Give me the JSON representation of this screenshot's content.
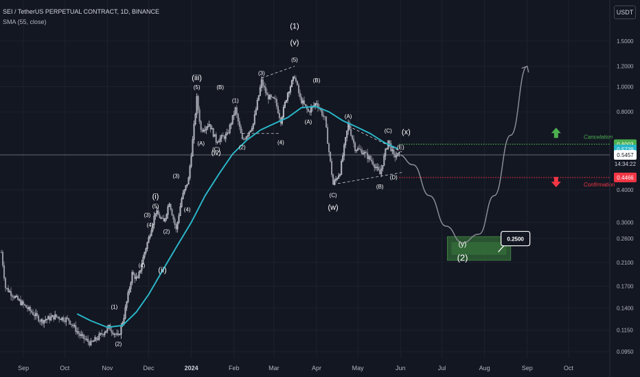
{
  "header": {
    "title": "SEI / TetherUS PERPETUAL CONTRACT, 1D, BINANCE",
    "indicator": "SMA (55, close)",
    "currency": "USDT"
  },
  "colors": {
    "background": "#131722",
    "bull": "#d1d4dc",
    "sma": "#29b6c8",
    "projection": "#8a8d96",
    "cancel_green": "#4caf50",
    "confirm_red": "#f23645",
    "current_line": "#b2b5be",
    "target_zone": "#2e5e32"
  },
  "chart_data": {
    "type": "candlestick",
    "title": "SEI / TetherUS PERPETUAL CONTRACT, 1D, BINANCE",
    "scale": "log",
    "ylim": [
      0.09,
      1.8
    ],
    "xlim": [
      "2023-08-15",
      "2024-10-31"
    ],
    "x_ticks": [
      {
        "date": "2023-09-01",
        "label": "Sep"
      },
      {
        "date": "2023-10-01",
        "label": "Oct"
      },
      {
        "date": "2023-11-01",
        "label": "Nov"
      },
      {
        "date": "2023-12-01",
        "label": "Dec"
      },
      {
        "date": "2024-01-01",
        "label": "2024"
      },
      {
        "date": "2024-02-01",
        "label": "Feb"
      },
      {
        "date": "2024-03-01",
        "label": "Mar"
      },
      {
        "date": "2024-04-01",
        "label": "Apr"
      },
      {
        "date": "2024-05-01",
        "label": "May"
      },
      {
        "date": "2024-06-01",
        "label": "Jun"
      },
      {
        "date": "2024-07-01",
        "label": "Jul"
      },
      {
        "date": "2024-08-01",
        "label": "Aug"
      },
      {
        "date": "2024-09-01",
        "label": "Sep"
      },
      {
        "date": "2024-10-01",
        "label": "Oct"
      }
    ],
    "y_ticks": [
      {
        "value": 1.5,
        "label": "1.5000"
      },
      {
        "value": 1.2,
        "label": "1.2000"
      },
      {
        "value": 1.0,
        "label": "1.0000"
      },
      {
        "value": 0.8,
        "label": "0.8000"
      },
      {
        "value": 0.4,
        "label": "0.4000"
      },
      {
        "value": 0.3,
        "label": "0.3000"
      },
      {
        "value": 0.26,
        "label": "0.2600"
      },
      {
        "value": 0.21,
        "label": "0.2100"
      },
      {
        "value": 0.17,
        "label": "0.1700"
      },
      {
        "value": 0.14,
        "label": "0.1400"
      },
      {
        "value": 0.115,
        "label": "0.1150"
      },
      {
        "value": 0.095,
        "label": "0.0950"
      }
    ],
    "price_path": [
      [
        "2023-08-16",
        0.23
      ],
      [
        "2023-08-19",
        0.168
      ],
      [
        "2023-08-27",
        0.152
      ],
      [
        "2023-09-07",
        0.135
      ],
      [
        "2023-09-14",
        0.125
      ],
      [
        "2023-09-24",
        0.13
      ],
      [
        "2023-10-04",
        0.126
      ],
      [
        "2023-10-12",
        0.11
      ],
      [
        "2023-10-20",
        0.102
      ],
      [
        "2023-10-27",
        0.11
      ],
      [
        "2023-11-02",
        0.118
      ],
      [
        "2023-11-09",
        0.108
      ],
      [
        "2023-11-13",
        0.13
      ],
      [
        "2023-11-19",
        0.19
      ],
      [
        "2023-11-23",
        0.18
      ],
      [
        "2023-11-28",
        0.23
      ],
      [
        "2023-12-01",
        0.26
      ],
      [
        "2023-12-06",
        0.33
      ],
      [
        "2023-12-12",
        0.3
      ],
      [
        "2023-12-16",
        0.36
      ],
      [
        "2023-12-21",
        0.28
      ],
      [
        "2023-12-25",
        0.37
      ],
      [
        "2023-12-30",
        0.44
      ],
      [
        "2024-01-02",
        0.62
      ],
      [
        "2024-01-05",
        0.9
      ],
      [
        "2024-01-08",
        0.68
      ],
      [
        "2024-01-14",
        0.72
      ],
      [
        "2024-01-19",
        0.62
      ],
      [
        "2024-01-27",
        0.65
      ],
      [
        "2024-02-02",
        0.82
      ],
      [
        "2024-02-07",
        0.62
      ],
      [
        "2024-02-11",
        0.66
      ],
      [
        "2024-02-15",
        0.72
      ],
      [
        "2024-02-21",
        1.05
      ],
      [
        "2024-02-25",
        0.92
      ],
      [
        "2024-03-02",
        0.88
      ],
      [
        "2024-03-06",
        0.74
      ],
      [
        "2024-03-11",
        0.95
      ],
      [
        "2024-03-16",
        1.1
      ],
      [
        "2024-03-20",
        0.9
      ],
      [
        "2024-03-26",
        0.8
      ],
      [
        "2024-04-01",
        0.87
      ],
      [
        "2024-04-07",
        0.75
      ],
      [
        "2024-04-13",
        0.42
      ],
      [
        "2024-04-18",
        0.47
      ],
      [
        "2024-04-24",
        0.72
      ],
      [
        "2024-04-29",
        0.58
      ],
      [
        "2024-05-05",
        0.56
      ],
      [
        "2024-05-12",
        0.51
      ],
      [
        "2024-05-17",
        0.46
      ],
      [
        "2024-05-23",
        0.62
      ],
      [
        "2024-05-27",
        0.54
      ],
      [
        "2024-05-31",
        0.5457
      ]
    ],
    "sma": {
      "name": "SMA (55, close)",
      "points": [
        [
          "2023-10-10",
          0.133
        ],
        [
          "2023-10-20",
          0.125
        ],
        [
          "2023-11-01",
          0.118
        ],
        [
          "2023-11-12",
          0.12
        ],
        [
          "2023-11-22",
          0.135
        ],
        [
          "2023-12-01",
          0.158
        ],
        [
          "2023-12-11",
          0.195
        ],
        [
          "2023-12-21",
          0.24
        ],
        [
          "2024-01-01",
          0.3
        ],
        [
          "2024-01-11",
          0.38
        ],
        [
          "2024-01-21",
          0.46
        ],
        [
          "2024-01-31",
          0.55
        ],
        [
          "2024-02-10",
          0.62
        ],
        [
          "2024-02-20",
          0.68
        ],
        [
          "2024-03-01",
          0.72
        ],
        [
          "2024-03-11",
          0.76
        ],
        [
          "2024-03-21",
          0.83
        ],
        [
          "2024-03-31",
          0.84
        ],
        [
          "2024-04-10",
          0.8
        ],
        [
          "2024-04-20",
          0.74
        ],
        [
          "2024-04-30",
          0.7
        ],
        [
          "2024-05-10",
          0.66
        ],
        [
          "2024-05-20",
          0.61
        ],
        [
          "2024-05-30",
          0.576
        ]
      ]
    },
    "current_price": 0.5457,
    "countdown": "14:34:22",
    "price_badges": [
      {
        "value": 0.6003,
        "label": "0.6003",
        "color": "#4caf50"
      },
      {
        "value": 0.5729,
        "label": "0.5729",
        "color": "#29b6c8"
      },
      {
        "value": 0.5457,
        "label": "0.5457",
        "color": "#ffffff"
      },
      {
        "value": 0.4466,
        "label": "0.4466",
        "color": "#f23645"
      }
    ],
    "levels": [
      {
        "value": 0.6003,
        "text": "Cancelation",
        "color": "#4caf50",
        "from": "2024-05-31"
      },
      {
        "value": 0.4466,
        "text": "Confirmation",
        "color": "#f23645",
        "from": "2024-05-31"
      }
    ],
    "projection": {
      "points": [
        [
          "2024-05-31",
          0.5457
        ],
        [
          "2024-06-10",
          0.5
        ],
        [
          "2024-06-22",
          0.38
        ],
        [
          "2024-07-04",
          0.29
        ],
        [
          "2024-07-16",
          0.25
        ],
        [
          "2024-07-28",
          0.27
        ],
        [
          "2024-08-08",
          0.38
        ],
        [
          "2024-08-20",
          0.65
        ],
        [
          "2024-09-01",
          1.2
        ]
      ]
    },
    "target_zone": {
      "from": "2024-07-05",
      "to": "2024-08-20",
      "top": 0.264,
      "bottom": 0.214
    },
    "callout": {
      "text": "0.2500",
      "x": "2024-08-13",
      "y": 0.27
    },
    "wave_labels": [
      {
        "text": "(1)",
        "x": "2024-03-16",
        "y": 1.68,
        "size": 11
      },
      {
        "text": "(v)",
        "x": "2024-03-16",
        "y": 1.45,
        "size": 11
      },
      {
        "text": "(5)",
        "x": "2024-03-16",
        "y": 1.25,
        "size": 8
      },
      {
        "text": "(iii)",
        "x": "2024-01-05",
        "y": 1.06,
        "size": 11
      },
      {
        "text": "(5)",
        "x": "2024-01-05",
        "y": 0.98,
        "size": 8
      },
      {
        "text": "(B)",
        "x": "2024-01-22",
        "y": 0.98,
        "size": 8
      },
      {
        "text": "(1)",
        "x": "2024-02-02",
        "y": 0.87,
        "size": 8
      },
      {
        "text": "(3)",
        "x": "2024-02-21",
        "y": 1.11,
        "size": 8
      },
      {
        "text": "(B)",
        "x": "2024-04-01",
        "y": 1.04,
        "size": 8
      },
      {
        "text": "(A)",
        "x": "2024-01-08",
        "y": 0.595,
        "size": 8
      },
      {
        "text": "(C)",
        "x": "2024-01-19",
        "y": 0.565,
        "size": 8
      },
      {
        "text": "(iv)",
        "x": "2024-01-19",
        "y": 0.545,
        "size": 10
      },
      {
        "text": "(2)",
        "x": "2024-02-07",
        "y": 0.575,
        "size": 8
      },
      {
        "text": "(4)",
        "x": "2024-03-06",
        "y": 0.6,
        "size": 8
      },
      {
        "text": "(A)",
        "x": "2024-03-26",
        "y": 0.72,
        "size": 8
      },
      {
        "text": "(A)",
        "x": "2024-04-24",
        "y": 0.755,
        "size": 8
      },
      {
        "text": "(C)",
        "x": "2024-05-23",
        "y": 0.665,
        "size": 8
      },
      {
        "text": "(x)",
        "x": "2024-06-05",
        "y": 0.655,
        "size": 11
      },
      {
        "text": "(E)",
        "x": "2024-06-01",
        "y": 0.575,
        "size": 8
      },
      {
        "text": "(D)",
        "x": "2024-05-27",
        "y": 0.44,
        "size": 8
      },
      {
        "text": "(B)",
        "x": "2024-05-17",
        "y": 0.405,
        "size": 8
      },
      {
        "text": "(C)",
        "x": "2024-04-13",
        "y": 0.375,
        "size": 8
      },
      {
        "text": "(w)",
        "x": "2024-04-13",
        "y": 0.335,
        "size": 11
      },
      {
        "text": "(3)",
        "x": "2023-12-21",
        "y": 0.445,
        "size": 8
      },
      {
        "text": "(4)",
        "x": "2023-12-29",
        "y": 0.33,
        "size": 8
      },
      {
        "text": "(i)",
        "x": "2023-12-06",
        "y": 0.37,
        "size": 11
      },
      {
        "text": "(5)",
        "x": "2023-12-06",
        "y": 0.34,
        "size": 8
      },
      {
        "text": "(3)",
        "x": "2023-11-30",
        "y": 0.315,
        "size": 8
      },
      {
        "text": "(4)",
        "x": "2023-12-02",
        "y": 0.288,
        "size": 8
      },
      {
        "text": "(2)",
        "x": "2023-12-14",
        "y": 0.272,
        "size": 8
      },
      {
        "text": "(4)",
        "x": "2023-11-26",
        "y": 0.201,
        "size": 8
      },
      {
        "text": "(ii)",
        "x": "2023-12-11",
        "y": 0.192,
        "size": 11
      },
      {
        "text": "(1)",
        "x": "2023-11-06",
        "y": 0.139,
        "size": 8
      },
      {
        "text": "(2)",
        "x": "2023-11-09",
        "y": 0.1,
        "size": 8
      },
      {
        "text": "(y)",
        "x": "2024-07-16",
        "y": 0.242,
        "size": 10
      },
      {
        "text": "(2)",
        "x": "2024-07-16",
        "y": 0.213,
        "size": 13
      }
    ],
    "channels": [
      [
        [
          "2024-02-21",
          1.08
        ],
        [
          "2024-03-16",
          1.2
        ]
      ],
      [
        [
          "2024-02-07",
          0.66
        ],
        [
          "2024-03-06",
          0.66
        ]
      ],
      [
        [
          "2024-04-13",
          0.42
        ],
        [
          "2024-06-02",
          0.467
        ]
      ],
      [
        [
          "2024-04-24",
          0.705
        ],
        [
          "2024-06-02",
          0.56
        ]
      ]
    ],
    "arrows": [
      {
        "dir": "up",
        "x": "2024-09-22",
        "y": 0.662,
        "color": "#4caf50"
      },
      {
        "dir": "down",
        "x": "2024-09-22",
        "y": 0.43,
        "color": "#f23645"
      }
    ]
  }
}
